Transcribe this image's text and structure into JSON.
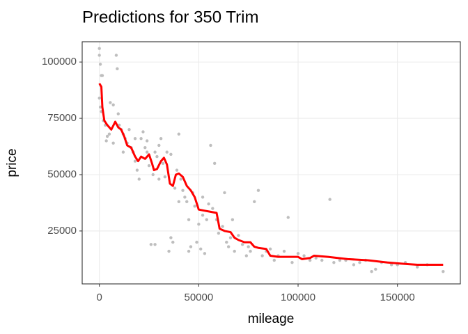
{
  "chart_data": {
    "type": "scatter",
    "title": "Predictions for 350 Trim",
    "x_label": "mileage",
    "y_label": "price",
    "xlim": [
      -8650,
      181650
    ],
    "ylim": [
      1500,
      109000
    ],
    "xticks": [
      0,
      50000,
      100000,
      150000
    ],
    "yticks": [
      25000,
      50000,
      75000,
      100000
    ],
    "grid": true,
    "points": {
      "color": "#bebebe",
      "x": [
        0,
        0,
        500,
        1000,
        1500,
        0,
        500,
        1000,
        2000,
        3000,
        4000,
        5000,
        3500,
        5500,
        7000,
        8500,
        9000,
        9500,
        10000,
        11000,
        12000,
        13000,
        14000,
        15000,
        16000,
        17000,
        18000,
        19000,
        20000,
        21000,
        22000,
        23000,
        24000,
        25000,
        26000,
        27000,
        28000,
        29000,
        30000,
        31000,
        32000,
        33000,
        34000,
        35000,
        36000,
        37000,
        38000,
        39000,
        40000,
        41000,
        42000,
        43000,
        44000,
        45000,
        46000,
        47000,
        48000,
        49000,
        50000,
        51000,
        52000,
        53000,
        54000,
        55000,
        56000,
        57000,
        58000,
        59000,
        60000,
        62000,
        63000,
        64000,
        65000,
        66000,
        67000,
        68000,
        70000,
        72000,
        74000,
        75000,
        76000,
        78000,
        80000,
        82000,
        84000,
        86000,
        88000,
        90000,
        93000,
        95000,
        97000,
        100000,
        103000,
        106000,
        109000,
        112000,
        116000,
        118000,
        121000,
        124000,
        128000,
        131000,
        134000,
        137000,
        139000,
        142000,
        147000,
        150000,
        154000,
        160000,
        165000,
        173000,
        7000,
        12000,
        18000,
        24000,
        28000,
        30000,
        36000,
        40000,
        45000,
        52000
      ],
      "y": [
        106000,
        103000,
        99000,
        94000,
        94000,
        84000,
        80000,
        78000,
        74000,
        72000,
        67000,
        68000,
        65000,
        82000,
        81000,
        103000,
        97000,
        77000,
        72000,
        70000,
        68000,
        66000,
        64000,
        70000,
        62000,
        60000,
        56000,
        52000,
        48000,
        66000,
        69000,
        62000,
        60000,
        54000,
        19000,
        50000,
        19000,
        58000,
        63000,
        66000,
        55000,
        49000,
        60000,
        16000,
        22000,
        20000,
        44000,
        52000,
        68000,
        48000,
        43000,
        40000,
        38000,
        16000,
        18000,
        42000,
        36000,
        20000,
        28000,
        17000,
        32000,
        15000,
        30000,
        37000,
        63000,
        35000,
        55000,
        30000,
        24000,
        27000,
        42000,
        20000,
        18000,
        22000,
        30000,
        16000,
        23000,
        19000,
        14000,
        18000,
        16000,
        38000,
        43000,
        14000,
        16000,
        17000,
        12000,
        14000,
        16000,
        31000,
        11000,
        15000,
        14000,
        12000,
        13000,
        12000,
        39000,
        11000,
        12000,
        12000,
        10000,
        11000,
        12000,
        7000,
        8000,
        11000,
        10000,
        10000,
        11000,
        9000,
        10000,
        7000,
        64000,
        60000,
        66000,
        65000,
        60000,
        48000,
        59000,
        38000,
        30000,
        40000
      ]
    },
    "line": {
      "color": "#ff0000",
      "x": [
        0,
        1000,
        1500,
        2500,
        4000,
        6000,
        8000,
        9500,
        11000,
        12500,
        14000,
        16000,
        18000,
        19500,
        21000,
        23000,
        25000,
        26500,
        27500,
        29000,
        31000,
        32500,
        34000,
        35500,
        37000,
        38500,
        40000,
        42000,
        44000,
        46000,
        48000,
        50000,
        53000,
        56000,
        59000,
        60500,
        63000,
        66000,
        68000,
        70000,
        73000,
        76000,
        78000,
        80000,
        84000,
        86000,
        90000,
        100000,
        102000,
        106000,
        108000,
        115000,
        125000,
        135000,
        145000,
        152000,
        160000,
        173000
      ],
      "y": [
        90500,
        89000,
        80000,
        74000,
        72000,
        70000,
        73500,
        71000,
        70000,
        67000,
        63000,
        62000,
        58000,
        56000,
        58000,
        57000,
        59000,
        55000,
        52000,
        52500,
        56000,
        57500,
        54500,
        46000,
        45000,
        50000,
        50500,
        49000,
        45000,
        43000,
        40000,
        34500,
        34000,
        33500,
        33000,
        26000,
        25000,
        24500,
        22000,
        21000,
        20000,
        20000,
        18000,
        17500,
        17000,
        14000,
        13500,
        13500,
        12500,
        13000,
        14000,
        13500,
        12500,
        12000,
        11000,
        10500,
        10000,
        10000
      ]
    }
  }
}
